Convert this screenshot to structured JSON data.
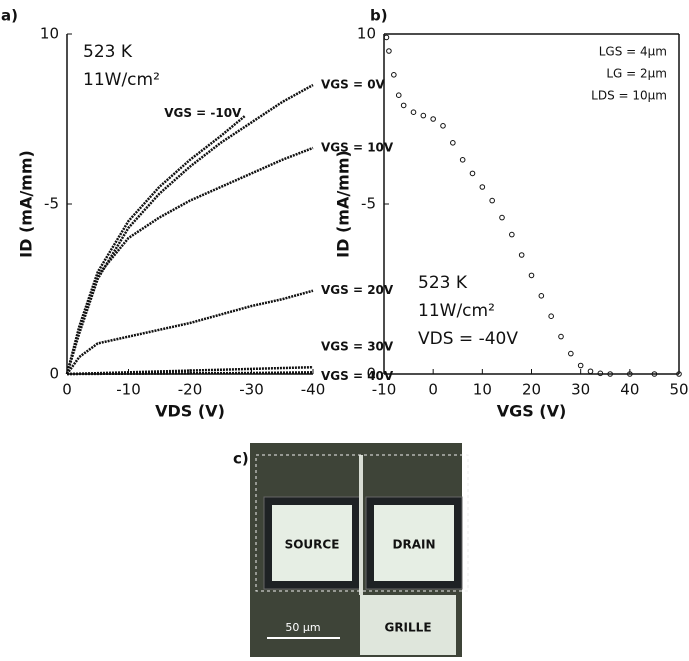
{
  "chart_data": [
    {
      "type": "line",
      "panel": "a)",
      "xlabel": "VDS (V)",
      "ylabel": "ID (mA/mm)",
      "xlim": [
        0,
        -40
      ],
      "xticks": [
        0,
        -10,
        -20,
        -30,
        -40
      ],
      "ylim": [
        0,
        -10
      ],
      "yticks": [
        0,
        -5,
        {
          "value": -10,
          "label": "10"
        }
      ],
      "annotations": [
        "523 K",
        "11W/cm²"
      ],
      "series": [
        {
          "name": "VGS = -10V",
          "color": "#111111",
          "x": [
            0,
            -2,
            -5,
            -10,
            -15,
            -20,
            -25,
            -29
          ],
          "values": [
            0,
            -1.4,
            -3.0,
            -4.5,
            -5.5,
            -6.3,
            -7.0,
            -7.6
          ]
        },
        {
          "name": "VGS = 0V",
          "color": "#111111",
          "x": [
            0,
            -2,
            -5,
            -10,
            -15,
            -20,
            -25,
            -30,
            -35,
            -40
          ],
          "values": [
            0,
            -1.2,
            -2.8,
            -4.3,
            -5.3,
            -6.1,
            -6.8,
            -7.4,
            -8.0,
            -8.5
          ]
        },
        {
          "name": "VGS = 10V",
          "color": "#111111",
          "x": [
            0,
            -2,
            -5,
            -10,
            -15,
            -20,
            -25,
            -30,
            -35,
            -40
          ],
          "values": [
            0,
            -1.3,
            -2.9,
            -4.0,
            -4.6,
            -5.1,
            -5.5,
            -5.9,
            -6.3,
            -6.65
          ]
        },
        {
          "name": "VGS = 20V",
          "color": "#111111",
          "x": [
            0,
            -2,
            -5,
            -10,
            -15,
            -20,
            -25,
            -30,
            -35,
            -40
          ],
          "values": [
            0,
            -0.5,
            -0.9,
            -1.1,
            -1.3,
            -1.5,
            -1.75,
            -2.0,
            -2.2,
            -2.45
          ]
        },
        {
          "name": "VGS = 30V",
          "color": "#111111",
          "x": [
            0,
            -10,
            -20,
            -30,
            -40
          ],
          "values": [
            0,
            -0.05,
            -0.1,
            -0.15,
            -0.2
          ]
        },
        {
          "name": "VGS = 40V",
          "color": "#111111",
          "x": [
            0,
            -10,
            -20,
            -30,
            -40
          ],
          "values": [
            0,
            -0.01,
            -0.02,
            -0.03,
            -0.05
          ]
        }
      ]
    },
    {
      "type": "scatter",
      "panel": "b)",
      "xlabel": "VGS (V)",
      "ylabel": "ID (mA/mm)",
      "xlim": [
        -10,
        50
      ],
      "xticks": [
        -10,
        0,
        10,
        20,
        30,
        40,
        50
      ],
      "ylim": [
        0,
        -10
      ],
      "yticks": [
        0,
        -5,
        {
          "value": -10,
          "label": "10"
        }
      ],
      "annotations": [
        "523 K",
        "11W/cm²",
        "VDS = -40V"
      ],
      "device": [
        "LGS = 4µm",
        "LG = 2µm",
        "LDS = 10µm"
      ],
      "color": "#111111",
      "x": [
        -9.5,
        -9,
        -8,
        -7,
        -6,
        -4,
        -2,
        0,
        2,
        4,
        6,
        8,
        10,
        12,
        14,
        16,
        18,
        20,
        22,
        24,
        26,
        28,
        30,
        32,
        34,
        36,
        40,
        45,
        50
      ],
      "values": [
        -9.9,
        -9.5,
        -8.8,
        -8.2,
        -7.9,
        -7.7,
        -7.6,
        -7.5,
        -7.3,
        -6.8,
        -6.3,
        -5.9,
        -5.5,
        -5.1,
        -4.6,
        -4.1,
        -3.5,
        -2.9,
        -2.3,
        -1.7,
        -1.1,
        -0.6,
        -0.25,
        -0.08,
        -0.02,
        0,
        0,
        0,
        0
      ]
    }
  ],
  "image": {
    "panel": "c)",
    "pads": [
      "SOURCE",
      "DRAIN",
      "GRILLE"
    ],
    "scale_bar": "50 µm"
  }
}
